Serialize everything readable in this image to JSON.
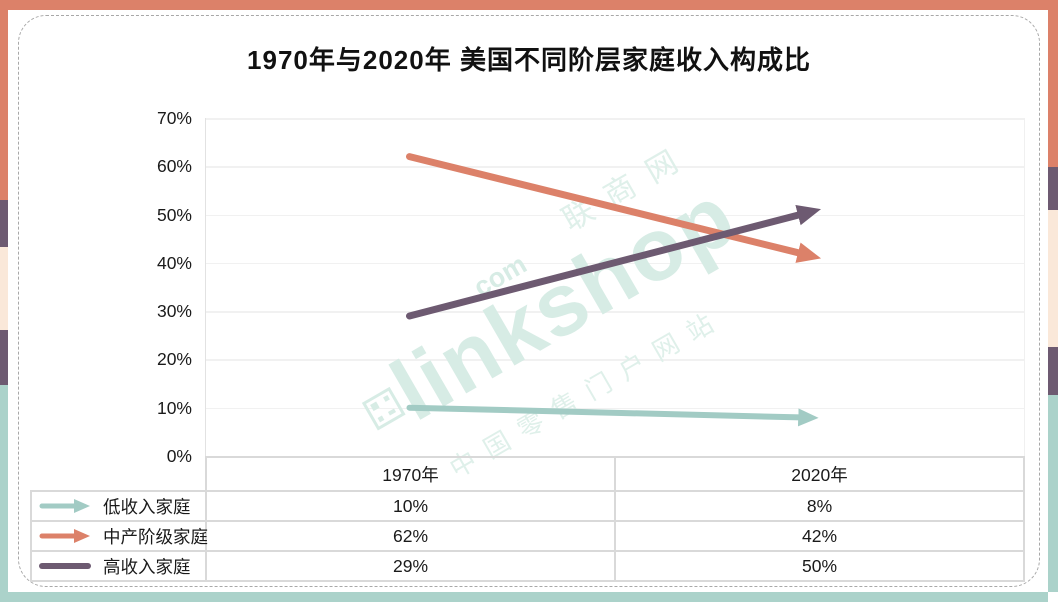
{
  "title": "1970年与2020年 美国不同阶层家庭收入构成比",
  "chart_data": {
    "type": "line",
    "subtype": "slope-arrow-chart",
    "title": "1970年与2020年 美国不同阶层家庭收入构成比",
    "categories": [
      "1970年",
      "2020年"
    ],
    "series": [
      {
        "name": "低收入家庭",
        "values": [
          10,
          8
        ],
        "color": "#A2CBC4",
        "legend_icon": "arrow"
      },
      {
        "name": "中产阶级家庭",
        "values": [
          62,
          42
        ],
        "color": "#DC8169",
        "legend_icon": "arrow"
      },
      {
        "name": "高收入家庭",
        "values": [
          29,
          50
        ],
        "color": "#6D5A71",
        "legend_icon": "line"
      }
    ],
    "ylim": [
      0,
      70
    ],
    "yticks": [
      "70%",
      "60%",
      "50%",
      "40%",
      "30%",
      "20%",
      "10%",
      "0%"
    ],
    "grid": true,
    "legend_position": "left-of-table-rows",
    "value_unit": "%"
  },
  "table": {
    "headers": [
      "1970年",
      "2020年"
    ],
    "rows": [
      {
        "label": "低收入家庭",
        "values": [
          "10%",
          "8%"
        ]
      },
      {
        "label": "中产阶级家庭",
        "values": [
          "62%",
          "42%"
        ]
      },
      {
        "label": "高收入家庭",
        "values": [
          "29%",
          "50%"
        ]
      }
    ]
  },
  "watermark": {
    "brand": "linkshop",
    "dotcom": ".com",
    "cn_name": "联商网",
    "cn_tagline": "中国零售门户网站"
  },
  "colors": {
    "salmon": "#DC8169",
    "purple": "#6D5A71",
    "cream": "#FAE8D9",
    "frame_teal": "#ABD2CA",
    "grid_line": "#F1F1F1",
    "table_border": "#D9D9D9",
    "watermark": "#D7ECE5",
    "watermark_light": "#DFF0EA",
    "text": "#1A1A1A"
  }
}
